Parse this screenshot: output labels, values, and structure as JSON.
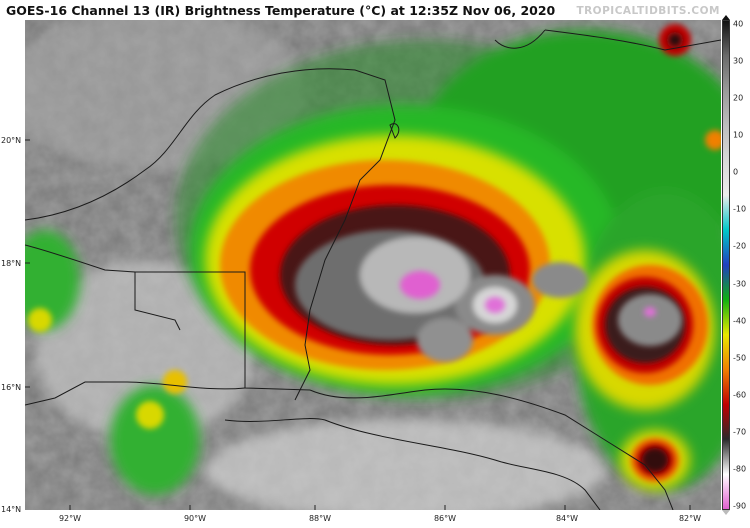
{
  "title": "GOES-16 Channel 13 (IR) Brightness Temperature (°C) at 12:35Z Nov 06, 2020",
  "source": "TROPICALTIDBITS.COM",
  "latitude_labels": [
    "20°N",
    "18°N",
    "16°N",
    "14°N"
  ],
  "longitude_labels": [
    "92°W",
    "90°W",
    "88°W",
    "86°W",
    "84°W",
    "82°W"
  ],
  "colorbar": {
    "ticks": [
      "40",
      "30",
      "20",
      "10",
      "0",
      "-10",
      "-20",
      "-30",
      "-40",
      "-50",
      "-60",
      "-70",
      "-80",
      "-90"
    ],
    "colors": [
      "#111111",
      "#6a6a6a",
      "#9a9a9a",
      "#bdbdbd",
      "#d8d8d8",
      "#ececec",
      "#00c8c8",
      "#2040c0",
      "#10b010",
      "#e8e800",
      "#f08000",
      "#c00000",
      "#2a2a2a",
      "#ffffff",
      "#e060d0"
    ]
  }
}
